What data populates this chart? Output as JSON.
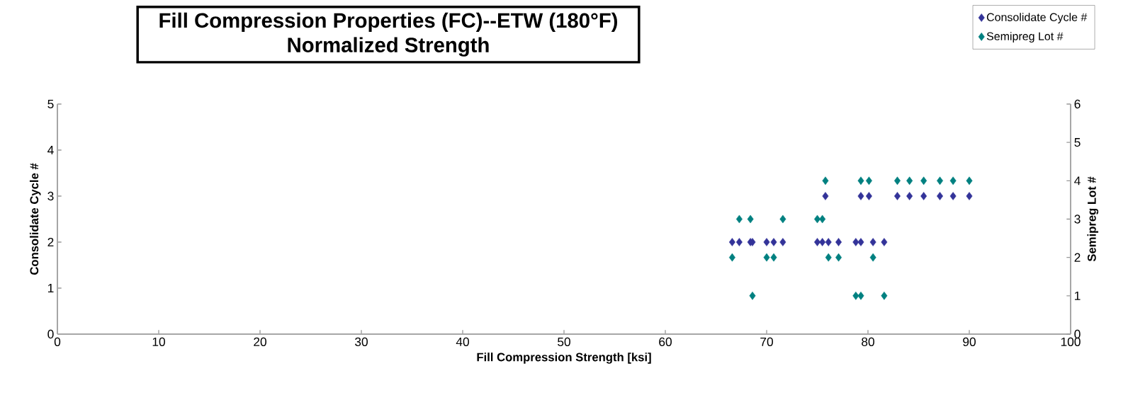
{
  "chart_data": {
    "type": "scatter",
    "title": "Fill Compression Properties (FC)--ETW (180°F)",
    "subtitle": "Normalized Strength",
    "xlabel": "Fill Compression Strength [ksi]",
    "ylabel": "Consolidate Cycle #",
    "y2label": "Semipreg Lot #",
    "xlim": [
      0,
      100
    ],
    "xticks": [
      0,
      10,
      20,
      30,
      40,
      50,
      60,
      70,
      80,
      90,
      100
    ],
    "ylim": [
      0,
      5
    ],
    "yticks": [
      0,
      1,
      2,
      3,
      4,
      5
    ],
    "y2lim": [
      0,
      6
    ],
    "y2ticks": [
      0,
      1,
      2,
      3,
      4,
      5,
      6
    ],
    "marker": "diamond",
    "legend": "top right",
    "series": [
      {
        "name": "Consolidate Cycle #",
        "color": "#333399",
        "x": [
          66.6,
          67.3,
          68.4,
          68.6,
          70.0,
          70.7,
          71.6,
          75.0,
          75.5,
          76.1,
          77.1,
          78.8,
          79.3,
          80.5,
          81.6,
          75.8,
          79.3,
          80.1,
          82.9,
          84.1,
          85.5,
          87.1,
          88.4,
          90.0
        ],
        "values": [
          2,
          2,
          2,
          2,
          2,
          2,
          2,
          2,
          2,
          2,
          2,
          2,
          2,
          2,
          2,
          3,
          3,
          3,
          3,
          3,
          3,
          3,
          3,
          3
        ]
      },
      {
        "name": "Semipreg Lot #",
        "color": "#008080",
        "axis": "y2",
        "x": [
          75.8,
          79.3,
          80.1,
          82.9,
          84.1,
          85.5,
          87.1,
          88.4,
          90.0,
          67.3,
          68.4,
          71.6,
          75.0,
          75.5,
          66.6,
          70.0,
          70.7,
          76.1,
          77.1,
          80.5,
          68.6,
          78.8,
          79.3,
          81.6
        ],
        "values": [
          4,
          4,
          4,
          4,
          4,
          4,
          4,
          4,
          4,
          3,
          3,
          3,
          3,
          3,
          2,
          2,
          2,
          2,
          2,
          2,
          1,
          1,
          1,
          1
        ]
      }
    ]
  }
}
